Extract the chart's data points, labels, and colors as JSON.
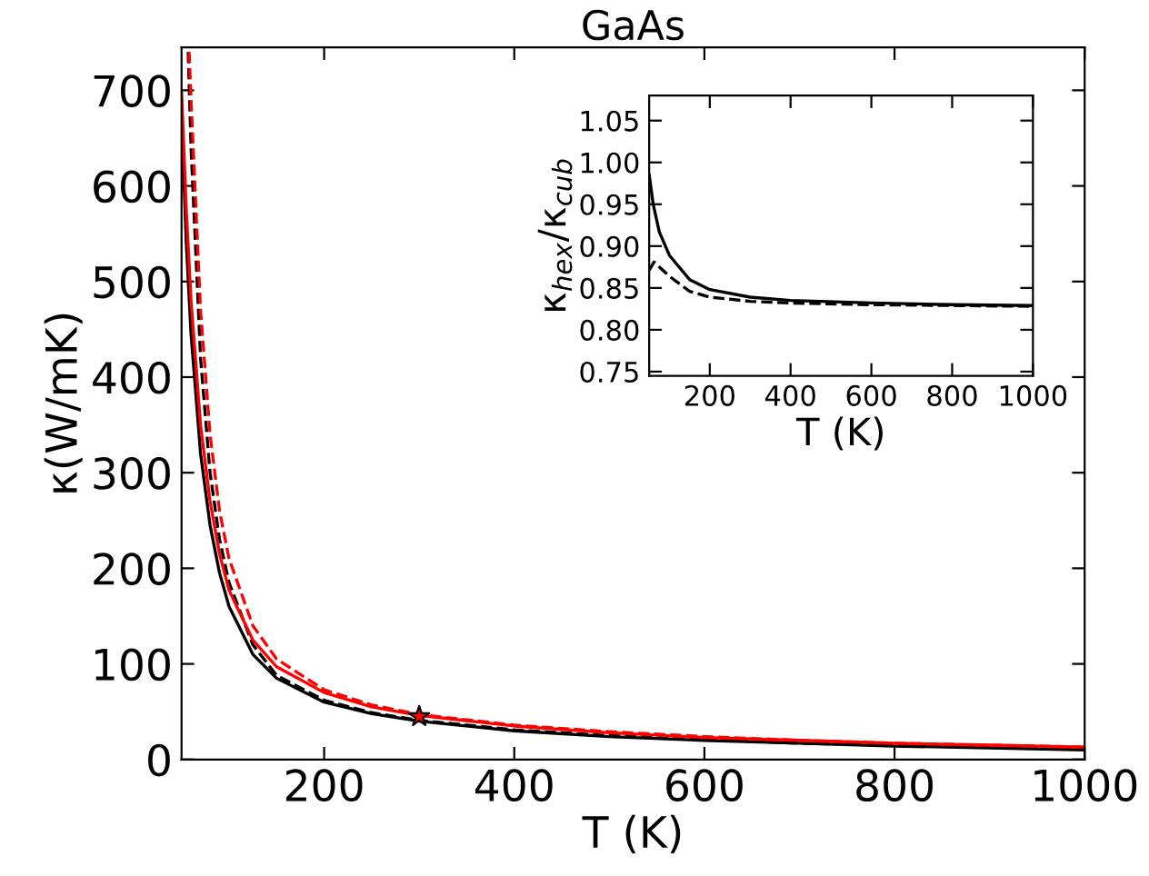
{
  "chart_data": [
    {
      "type": "line",
      "title": "GaAs",
      "xlabel": "T (K)",
      "ylabel": "κ(W/mK)",
      "xlim": [
        50,
        1000
      ],
      "ylim": [
        0,
        745
      ],
      "xticks": [
        200,
        400,
        600,
        800,
        1000
      ],
      "yticks": [
        0,
        100,
        200,
        300,
        400,
        500,
        600,
        700
      ],
      "grid": false,
      "series": [
        {
          "color": "#000000",
          "line_style": "solid",
          "x": [
            50,
            55,
            60,
            70,
            80,
            90,
            100,
            125,
            150,
            200,
            250,
            300,
            400,
            500,
            600,
            700,
            800,
            900,
            1000
          ],
          "values": [
            674,
            540,
            445,
            320,
            245,
            195,
            160,
            110,
            85,
            60,
            48,
            40,
            30,
            24,
            20,
            17,
            14,
            12,
            10
          ]
        },
        {
          "color": "#000000",
          "line_style": "dashed",
          "x": [
            57,
            60,
            70,
            80,
            90,
            100,
            125,
            150,
            200,
            250,
            300,
            400,
            500,
            600,
            700,
            800,
            900,
            1000
          ],
          "values": [
            740,
            640,
            420,
            300,
            230,
            185,
            120,
            88,
            62,
            49,
            41,
            31,
            25,
            21,
            17,
            15,
            13,
            11
          ]
        },
        {
          "color": "#ff0000",
          "line_style": "solid",
          "x": [
            50,
            55,
            60,
            70,
            80,
            90,
            100,
            125,
            150,
            200,
            250,
            300,
            400,
            500,
            600,
            700,
            800,
            900,
            1000
          ],
          "values": [
            700,
            575,
            480,
            350,
            270,
            215,
            177,
            125,
            97,
            70,
            55,
            46,
            35,
            28,
            23,
            20,
            17,
            15,
            13
          ]
        },
        {
          "color": "#ff0000",
          "line_style": "dashed",
          "x": [
            58,
            60,
            70,
            80,
            90,
            100,
            125,
            150,
            200,
            250,
            300,
            400,
            500,
            600,
            700,
            800,
            900,
            1000
          ],
          "values": [
            740,
            690,
            470,
            340,
            260,
            210,
            140,
            105,
            73,
            57,
            47,
            36,
            29,
            24,
            20,
            17,
            15,
            13
          ]
        },
        {
          "type": "scatter",
          "color": "#ff0000",
          "marker": "star",
          "x": [
            300
          ],
          "values": [
            45
          ]
        }
      ]
    },
    {
      "type": "line",
      "xlabel": "T (K)",
      "ylabel": "κ$_{hex}$/κ$_{cub}$",
      "xlim": [
        50,
        1000
      ],
      "ylim": [
        0.745,
        1.08
      ],
      "xticks": [
        200,
        400,
        600,
        800,
        1000
      ],
      "yticks": [
        0.75,
        {
          "value": 0.8,
          "label": "0.80"
        },
        0.85,
        {
          "value": 0.9,
          "label": "0.90"
        },
        0.95,
        {
          "value": 1.0,
          "label": "1.00"
        },
        1.05
      ],
      "grid": false,
      "series": [
        {
          "color": "#000000",
          "line_style": "solid",
          "x": [
            50,
            60,
            75,
            100,
            150,
            200,
            300,
            400,
            600,
            800,
            1000
          ],
          "values": [
            0.985,
            0.95,
            0.917,
            0.889,
            0.86,
            0.848,
            0.839,
            0.835,
            0.832,
            0.83,
            0.829
          ]
        },
        {
          "color": "#000000",
          "line_style": "dashed",
          "x": [
            50,
            62,
            75,
            100,
            150,
            200,
            300,
            400,
            600,
            800,
            1000
          ],
          "values": [
            0.871,
            0.881,
            0.875,
            0.864,
            0.846,
            0.839,
            0.834,
            0.832,
            0.83,
            0.829,
            0.828
          ]
        }
      ]
    }
  ]
}
